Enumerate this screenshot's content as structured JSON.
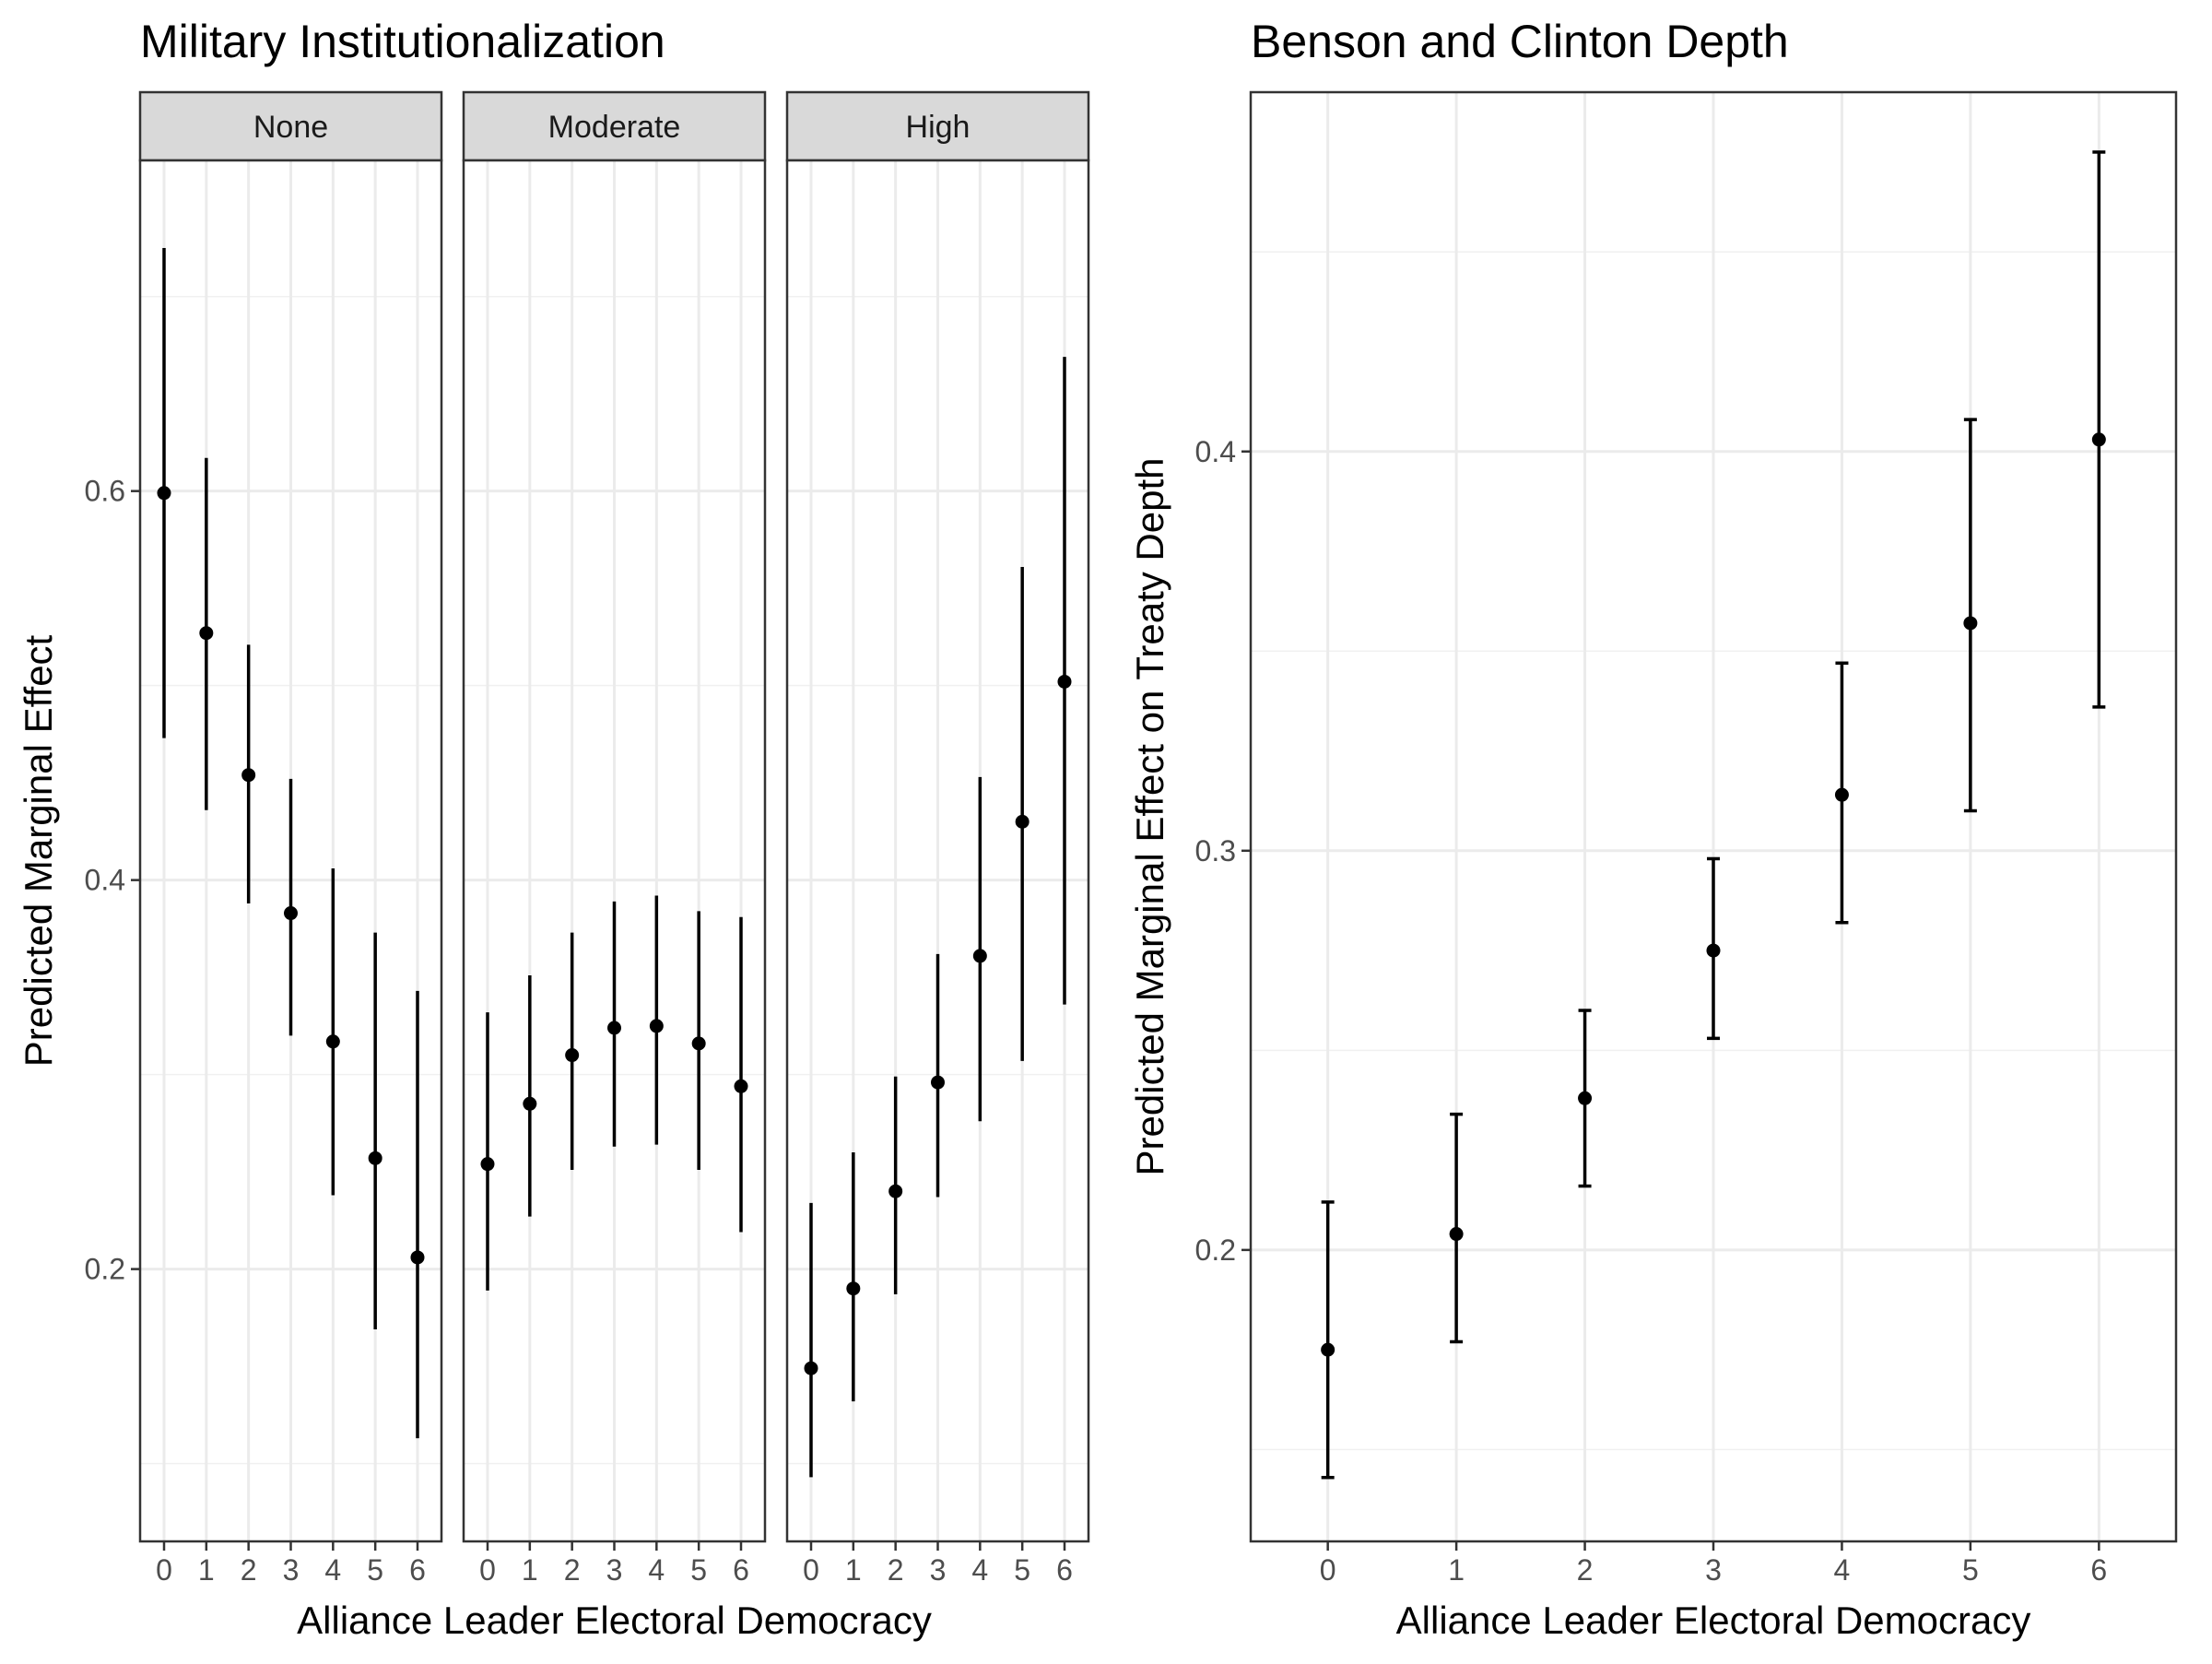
{
  "chart_data": [
    {
      "type": "errorbar",
      "title": "Military Institutionalization",
      "xlabel": "Alliance Leader Electoral Democracy",
      "ylabel": "Predicted Marginal Effect",
      "x": [
        0,
        1,
        2,
        3,
        4,
        5,
        6
      ],
      "x_ticks": [
        "0",
        "1",
        "2",
        "3",
        "4",
        "5",
        "6"
      ],
      "ylim": [
        0.06,
        0.77
      ],
      "y_ticks": [
        0.2,
        0.4,
        0.6
      ],
      "y_tick_labels": [
        "0.2",
        "0.4",
        "0.6"
      ],
      "grid": true,
      "facets": [
        {
          "label": "None",
          "estimate": [
            0.599,
            0.527,
            0.454,
            0.383,
            0.317,
            0.257,
            0.206
          ],
          "lower": [
            0.473,
            0.436,
            0.388,
            0.32,
            0.238,
            0.169,
            0.113
          ],
          "upper": [
            0.725,
            0.617,
            0.521,
            0.452,
            0.406,
            0.373,
            0.343
          ]
        },
        {
          "label": "Moderate",
          "estimate": [
            0.254,
            0.285,
            0.31,
            0.324,
            0.325,
            0.316,
            0.294
          ],
          "lower": [
            0.189,
            0.227,
            0.251,
            0.263,
            0.264,
            0.251,
            0.219
          ],
          "upper": [
            0.332,
            0.351,
            0.373,
            0.389,
            0.392,
            0.384,
            0.381
          ]
        },
        {
          "label": "High",
          "estimate": [
            0.149,
            0.19,
            0.24,
            0.296,
            0.361,
            0.43,
            0.502
          ],
          "lower": [
            0.093,
            0.132,
            0.187,
            0.237,
            0.276,
            0.307,
            0.336
          ],
          "upper": [
            0.234,
            0.26,
            0.299,
            0.362,
            0.453,
            0.561,
            0.669
          ]
        }
      ]
    },
    {
      "type": "errorbar",
      "title": "Benson and Clinton Depth",
      "xlabel": "Alliance Leader Electoral Democracy",
      "ylabel": "Predicted Marginal Effect on Treaty Depth",
      "x": [
        0,
        1,
        2,
        3,
        4,
        5,
        6
      ],
      "x_ticks": [
        "0",
        "1",
        "2",
        "3",
        "4",
        "5",
        "6"
      ],
      "ylim": [
        0.127,
        0.49
      ],
      "y_ticks": [
        0.2,
        0.3,
        0.4
      ],
      "y_tick_labels": [
        "0.2",
        "0.3",
        "0.4"
      ],
      "grid": true,
      "estimate": [
        0.175,
        0.204,
        0.238,
        0.275,
        0.314,
        0.357,
        0.403
      ],
      "lower": [
        0.143,
        0.177,
        0.216,
        0.253,
        0.282,
        0.31,
        0.336
      ],
      "upper": [
        0.212,
        0.234,
        0.26,
        0.298,
        0.347,
        0.408,
        0.475
      ]
    }
  ]
}
